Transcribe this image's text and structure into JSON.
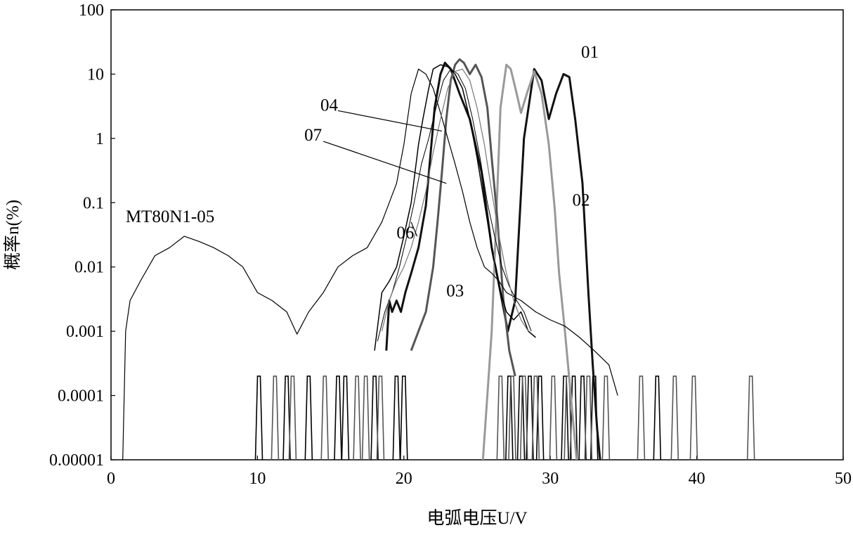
{
  "chart_data": {
    "type": "line",
    "xlabel": "电弧电压U/V",
    "ylabel": "概率n(%)",
    "xlim": [
      0,
      50
    ],
    "ylim": [
      1e-05,
      100
    ],
    "yscale": "log",
    "grid": false,
    "x_ticks": [
      "0",
      "10",
      "20",
      "30",
      "40",
      "50"
    ],
    "y_ticks": [
      "0.00001",
      "0.0001",
      "0.001",
      "0.01",
      "0.1",
      "1",
      "10",
      "100"
    ],
    "series": [
      {
        "name": "01",
        "color": "#111111",
        "width": 3,
        "x": [
          18.8,
          19.0,
          19.2,
          19.5,
          19.8,
          20.1,
          20.5,
          21.0,
          21.5,
          21.8,
          22.1,
          22.5,
          22.8,
          23.2,
          23.8,
          24.5,
          25.3,
          26.0,
          26.6,
          27.1,
          27.6,
          28.2,
          28.9,
          29.4,
          29.9,
          30.4,
          30.9,
          31.3,
          31.7,
          32.2,
          32.6,
          32.9,
          33.2,
          33.4
        ],
        "y": [
          0.0005,
          0.003,
          0.002,
          0.003,
          0.002,
          0.004,
          0.008,
          0.02,
          0.09,
          0.5,
          3,
          10,
          15,
          12,
          5,
          2,
          0.3,
          0.02,
          0.004,
          0.001,
          0.003,
          1,
          12,
          8,
          2,
          5,
          10,
          9,
          2,
          0.2,
          0.004,
          0.0003,
          3e-05,
          1e-05
        ]
      },
      {
        "name": "02",
        "color": "#999999",
        "width": 3,
        "x": [
          25.4,
          25.7,
          26.0,
          26.3,
          26.6,
          27.0,
          27.3,
          27.7,
          28.0,
          28.4,
          28.9,
          29.4,
          29.9,
          30.3,
          30.6,
          31.0,
          31.4,
          31.8
        ],
        "y": [
          1e-05,
          0.0001,
          0.001,
          0.05,
          3,
          14,
          12,
          5,
          2.5,
          5,
          11,
          5,
          0.8,
          0.08,
          0.008,
          0.001,
          0.0001,
          1e-05
        ]
      },
      {
        "name": "03",
        "color": "#555555",
        "width": 3,
        "x": [
          20.5,
          21.0,
          21.5,
          22.0,
          22.3,
          22.6,
          22.9,
          23.2,
          23.5,
          23.8,
          24.1,
          24.5,
          24.9,
          25.3,
          25.7,
          26.0,
          26.4,
          26.8,
          27.2,
          27.6
        ],
        "y": [
          0.0005,
          0.001,
          0.002,
          0.01,
          0.05,
          0.3,
          2,
          8,
          14,
          17,
          15,
          10,
          14,
          9,
          3,
          0.5,
          0.05,
          0.003,
          0.0005,
          0.0002
        ]
      },
      {
        "name": "04",
        "color": "#000000",
        "width": 1.5,
        "x": [
          18.0,
          18.5,
          19.0,
          19.5,
          20.0,
          20.5,
          21.0,
          21.3,
          21.7,
          22.0,
          22.5,
          23.0,
          23.5,
          24.0,
          24.5,
          25.0,
          25.5,
          26.0,
          26.5,
          27.0,
          27.5,
          28.0,
          28.5,
          29.0
        ],
        "y": [
          0.0005,
          0.004,
          0.006,
          0.01,
          0.03,
          0.1,
          0.8,
          2,
          6,
          12,
          14,
          13,
          10,
          6,
          2,
          0.5,
          0.1,
          0.02,
          0.005,
          0.002,
          0.0015,
          0.002,
          0.001,
          0.0008
        ]
      },
      {
        "name": "MT80N1-05",
        "color": "#000000",
        "width": 1.2,
        "x": [
          0.8,
          1.0,
          1.3,
          2.0,
          3.0,
          4.0,
          5.0,
          6.0,
          7.0,
          8.0,
          9.0,
          10.0,
          11.0,
          12.0,
          12.7,
          13.5,
          14.5,
          15.5,
          16.5,
          17.5,
          18.5,
          19.5,
          20.0,
          20.5,
          21.0,
          21.5,
          22.0,
          22.5,
          23.0,
          23.5,
          24.0,
          24.5,
          25.0,
          25.5,
          26.0,
          26.5,
          27.0,
          28.0,
          29.0,
          30.0,
          31.0,
          32.0,
          33.0,
          34.0,
          34.6
        ],
        "y": [
          1e-05,
          0.001,
          0.003,
          0.006,
          0.015,
          0.02,
          0.03,
          0.025,
          0.02,
          0.015,
          0.01,
          0.004,
          0.003,
          0.002,
          0.0009,
          0.002,
          0.004,
          0.01,
          0.015,
          0.02,
          0.05,
          0.2,
          0.8,
          5,
          12,
          10,
          6,
          2.5,
          1,
          0.4,
          0.15,
          0.05,
          0.02,
          0.01,
          0.008,
          0.006,
          0.004,
          0.003,
          0.002,
          0.0015,
          0.0012,
          0.0008,
          0.0005,
          0.0003,
          0.0001
        ]
      },
      {
        "name": "06",
        "color": "#000000",
        "width": 1.0,
        "x": [
          18.2,
          18.7,
          19.2,
          19.7,
          20.2,
          20.7,
          21.2,
          21.7,
          22.2,
          22.7,
          23.2,
          23.7,
          24.2,
          24.7,
          25.2,
          25.7,
          26.2,
          26.7,
          27.2,
          27.7,
          28.2,
          28.7
        ],
        "y": [
          0.0007,
          0.002,
          0.004,
          0.01,
          0.03,
          0.1,
          0.4,
          1,
          3,
          8,
          12,
          10,
          6,
          2,
          0.5,
          0.1,
          0.03,
          0.01,
          0.005,
          0.003,
          0.002,
          0.001
        ]
      },
      {
        "name": "07",
        "color": "#777777",
        "width": 1.2,
        "x": [
          18.5,
          19.0,
          19.5,
          20.0,
          20.5,
          21.0,
          21.5,
          22.0,
          22.5,
          23.0,
          23.5,
          24.0,
          24.5,
          25.0,
          25.5,
          26.0,
          26.5,
          27.0,
          27.5,
          28.0,
          28.5
        ],
        "y": [
          0.001,
          0.003,
          0.006,
          0.01,
          0.02,
          0.05,
          0.15,
          0.6,
          2,
          6,
          11,
          12,
          8,
          3,
          0.8,
          0.15,
          0.03,
          0.008,
          0.003,
          0.0015,
          0.001
        ]
      }
    ],
    "spikes": [
      {
        "color": "#000000",
        "x": [
          10.1,
          12.0,
          13.5,
          15.5,
          16.0,
          18.0,
          19.5,
          20.0,
          27.2,
          28.0,
          28.6,
          29.3,
          31.0,
          31.6,
          32.2,
          33.0,
          37.3
        ]
      },
      {
        "color": "#555555",
        "x": [
          11.2,
          12.4,
          14.6,
          16.8,
          17.4,
          18.4,
          26.6,
          27.4,
          28.2,
          29.0,
          30.2,
          31.2,
          32.6,
          33.8,
          36.2,
          38.5,
          39.8,
          43.7
        ]
      }
    ],
    "labels": [
      {
        "text": "01",
        "x": 32.1,
        "y": 18
      },
      {
        "text": "02",
        "x": 31.5,
        "y": 0.09
      },
      {
        "text": "03",
        "x": 22.9,
        "y": 0.0035
      },
      {
        "text": "04",
        "x": 14.3,
        "y": 2.7
      },
      {
        "text": "06",
        "x": 19.5,
        "y": 0.028
      },
      {
        "text": "07",
        "x": 13.2,
        "y": 0.92
      },
      {
        "text": "MT80N1-05",
        "x": 1.0,
        "y": 0.05
      }
    ],
    "leaders": [
      {
        "x1": 15.5,
        "y1": 2.7,
        "x2": 22.6,
        "y2": 1.3
      },
      {
        "x1": 14.5,
        "y1": 0.9,
        "x2": 22.9,
        "y2": 0.2
      },
      {
        "x1": 20.5,
        "y1": 0.05,
        "x2": 20.9,
        "y2": 0.03
      }
    ]
  }
}
